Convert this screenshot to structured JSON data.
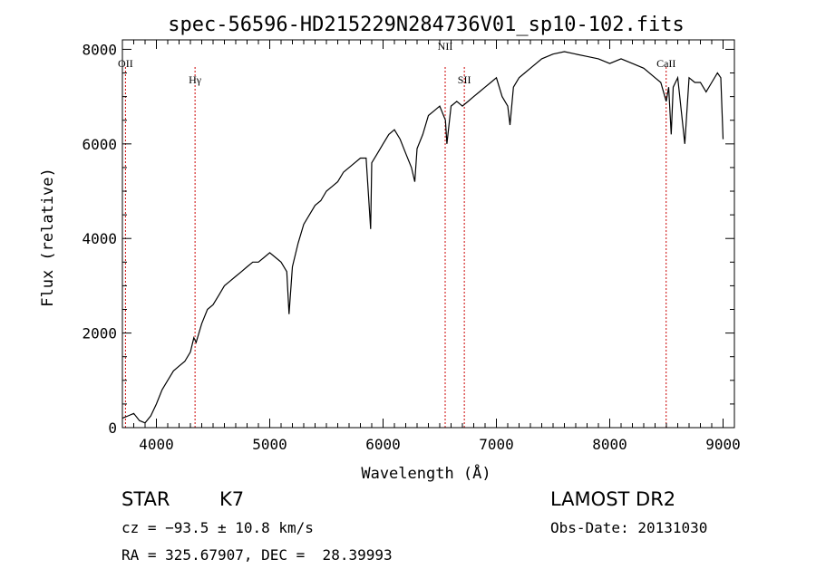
{
  "chart_data": {
    "type": "line",
    "title": "spec-56596-HD215229N284736V01_sp10-102.fits",
    "xlabel": "Wavelength (Å)",
    "ylabel": "Flux (relative)",
    "xlim": [
      3700,
      9100
    ],
    "ylim": [
      0,
      8200
    ],
    "x_ticks": [
      4000,
      5000,
      6000,
      7000,
      8000,
      9000
    ],
    "x_tick_labels": [
      "4000",
      "5000",
      "6000",
      "7000",
      "8000",
      "9000"
    ],
    "y_ticks": [
      0,
      2000,
      4000,
      6000,
      8000
    ],
    "y_tick_labels": [
      "0",
      "2000",
      "4000",
      "6000",
      "8000"
    ],
    "grid": false,
    "line_color": "#000000",
    "marker_color": "#cc0000",
    "spectral_lines": [
      {
        "label": "OII",
        "wavelength": 3727
      },
      {
        "label": "Hγ",
        "wavelength": 4341
      },
      {
        "label": "NII",
        "wavelength": 6548
      },
      {
        "label": "SII",
        "wavelength": 6717
      },
      {
        "label": "CaII",
        "wavelength": 8498
      }
    ],
    "series": [
      {
        "x": [
          3700,
          3750,
          3800,
          3850,
          3900,
          3950,
          4000,
          4050,
          4100,
          4150,
          4200,
          4250,
          4300,
          4330,
          4350,
          4400,
          4450,
          4500,
          4550,
          4600,
          4650,
          4700,
          4750,
          4800,
          4850,
          4900,
          4950,
          5000,
          5050,
          5100,
          5150,
          5170,
          5200,
          5250,
          5300,
          5350,
          5400,
          5450,
          5500,
          5550,
          5600,
          5650,
          5700,
          5750,
          5800,
          5850,
          5890,
          5900,
          5950,
          6000,
          6050,
          6100,
          6150,
          6200,
          6250,
          6280,
          6300,
          6350,
          6400,
          6450,
          6500,
          6550,
          6563,
          6600,
          6650,
          6700,
          6750,
          6800,
          6850,
          6900,
          6950,
          7000,
          7050,
          7100,
          7120,
          7150,
          7200,
          7250,
          7300,
          7400,
          7500,
          7600,
          7700,
          7800,
          7900,
          8000,
          8100,
          8200,
          8300,
          8400,
          8450,
          8498,
          8520,
          8542,
          8560,
          8600,
          8662,
          8700,
          8750,
          8800,
          8850,
          8900,
          8950,
          8980,
          9000
        ],
        "y": [
          200,
          250,
          300,
          150,
          100,
          250,
          500,
          800,
          1000,
          1200,
          1300,
          1400,
          1600,
          1900,
          1800,
          2200,
          2500,
          2600,
          2800,
          3000,
          3100,
          3200,
          3300,
          3400,
          3500,
          3500,
          3600,
          3700,
          3600,
          3500,
          3300,
          2400,
          3400,
          3900,
          4300,
          4500,
          4700,
          4800,
          5000,
          5100,
          5200,
          5400,
          5500,
          5600,
          5700,
          5700,
          4200,
          5600,
          5800,
          6000,
          6200,
          6300,
          6100,
          5800,
          5500,
          5200,
          5900,
          6200,
          6600,
          6700,
          6800,
          6500,
          6000,
          6800,
          6900,
          6800,
          6900,
          7000,
          7100,
          7200,
          7300,
          7400,
          7000,
          6800,
          6400,
          7200,
          7400,
          7500,
          7600,
          7800,
          7900,
          7950,
          7900,
          7850,
          7800,
          7700,
          7800,
          7700,
          7600,
          7400,
          7300,
          6900,
          7200,
          6200,
          7200,
          7400,
          6000,
          7400,
          7300,
          7300,
          7100,
          7300,
          7500,
          7400,
          6100
        ]
      }
    ]
  },
  "info": {
    "object_class": "STAR",
    "subclass": "K7",
    "survey": "LAMOST DR2",
    "cz": "cz = −93.5 ± 10.8 km/s",
    "obs_date": "Obs-Date: 20131030",
    "coords": "RA = 325.67907, DEC =  28.39993"
  }
}
